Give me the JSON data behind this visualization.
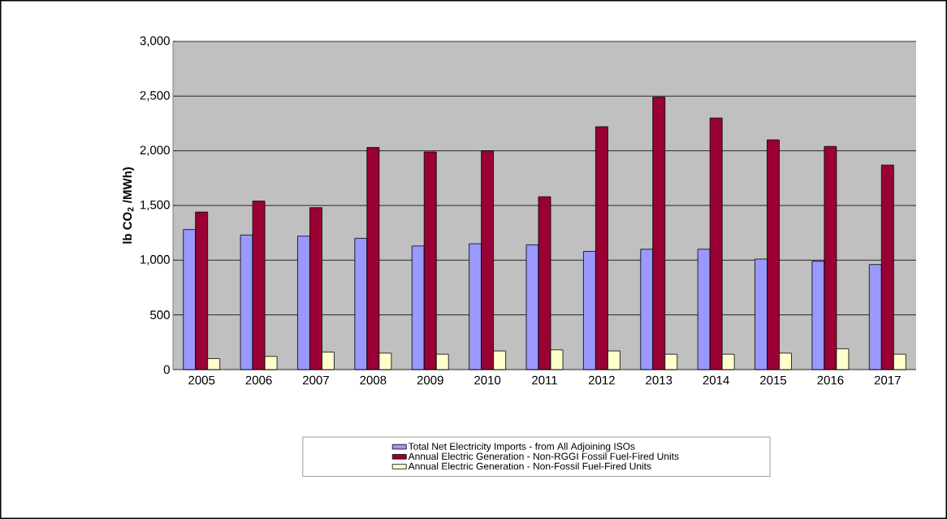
{
  "chart_data": {
    "type": "bar",
    "ylabel": "lb CO$_{2}$ /MWh)",
    "categories": [
      "2005",
      "2006",
      "2007",
      "2008",
      "2009",
      "2010",
      "2011",
      "2012",
      "2013",
      "2014",
      "2015",
      "2016",
      "2017"
    ],
    "series": [
      {
        "name": "Total Net Electricity Imports - from All Adjoining ISOs",
        "color": "#9999ff",
        "values": [
          1280,
          1230,
          1220,
          1200,
          1130,
          1150,
          1140,
          1080,
          1100,
          1100,
          1010,
          990,
          960
        ]
      },
      {
        "name": "Annual Electric Generation - Non-RGGI Fossil Fuel-Fired Units",
        "color": "#990033",
        "values": [
          1440,
          1540,
          1480,
          2030,
          1990,
          2000,
          1580,
          2220,
          2490,
          2300,
          2100,
          2040,
          1870
        ]
      },
      {
        "name": "Annual Electric Generation - Non-Fossil Fuel-Fired Units",
        "color": "#ffffcc",
        "values": [
          100,
          120,
          160,
          150,
          140,
          170,
          180,
          170,
          140,
          140,
          150,
          190,
          140
        ]
      }
    ],
    "ylim": [
      0,
      3000
    ],
    "yticks": [
      0,
      500,
      {
        "value": 1000,
        "label": "1,000"
      },
      {
        "value": 1500,
        "label": "1,500"
      },
      {
        "value": 2000,
        "label": "2,000"
      },
      {
        "value": 2500,
        "label": "2,500"
      },
      {
        "value": 3000,
        "label": "3,000"
      }
    ],
    "grid": "y",
    "legend": "bottom"
  }
}
